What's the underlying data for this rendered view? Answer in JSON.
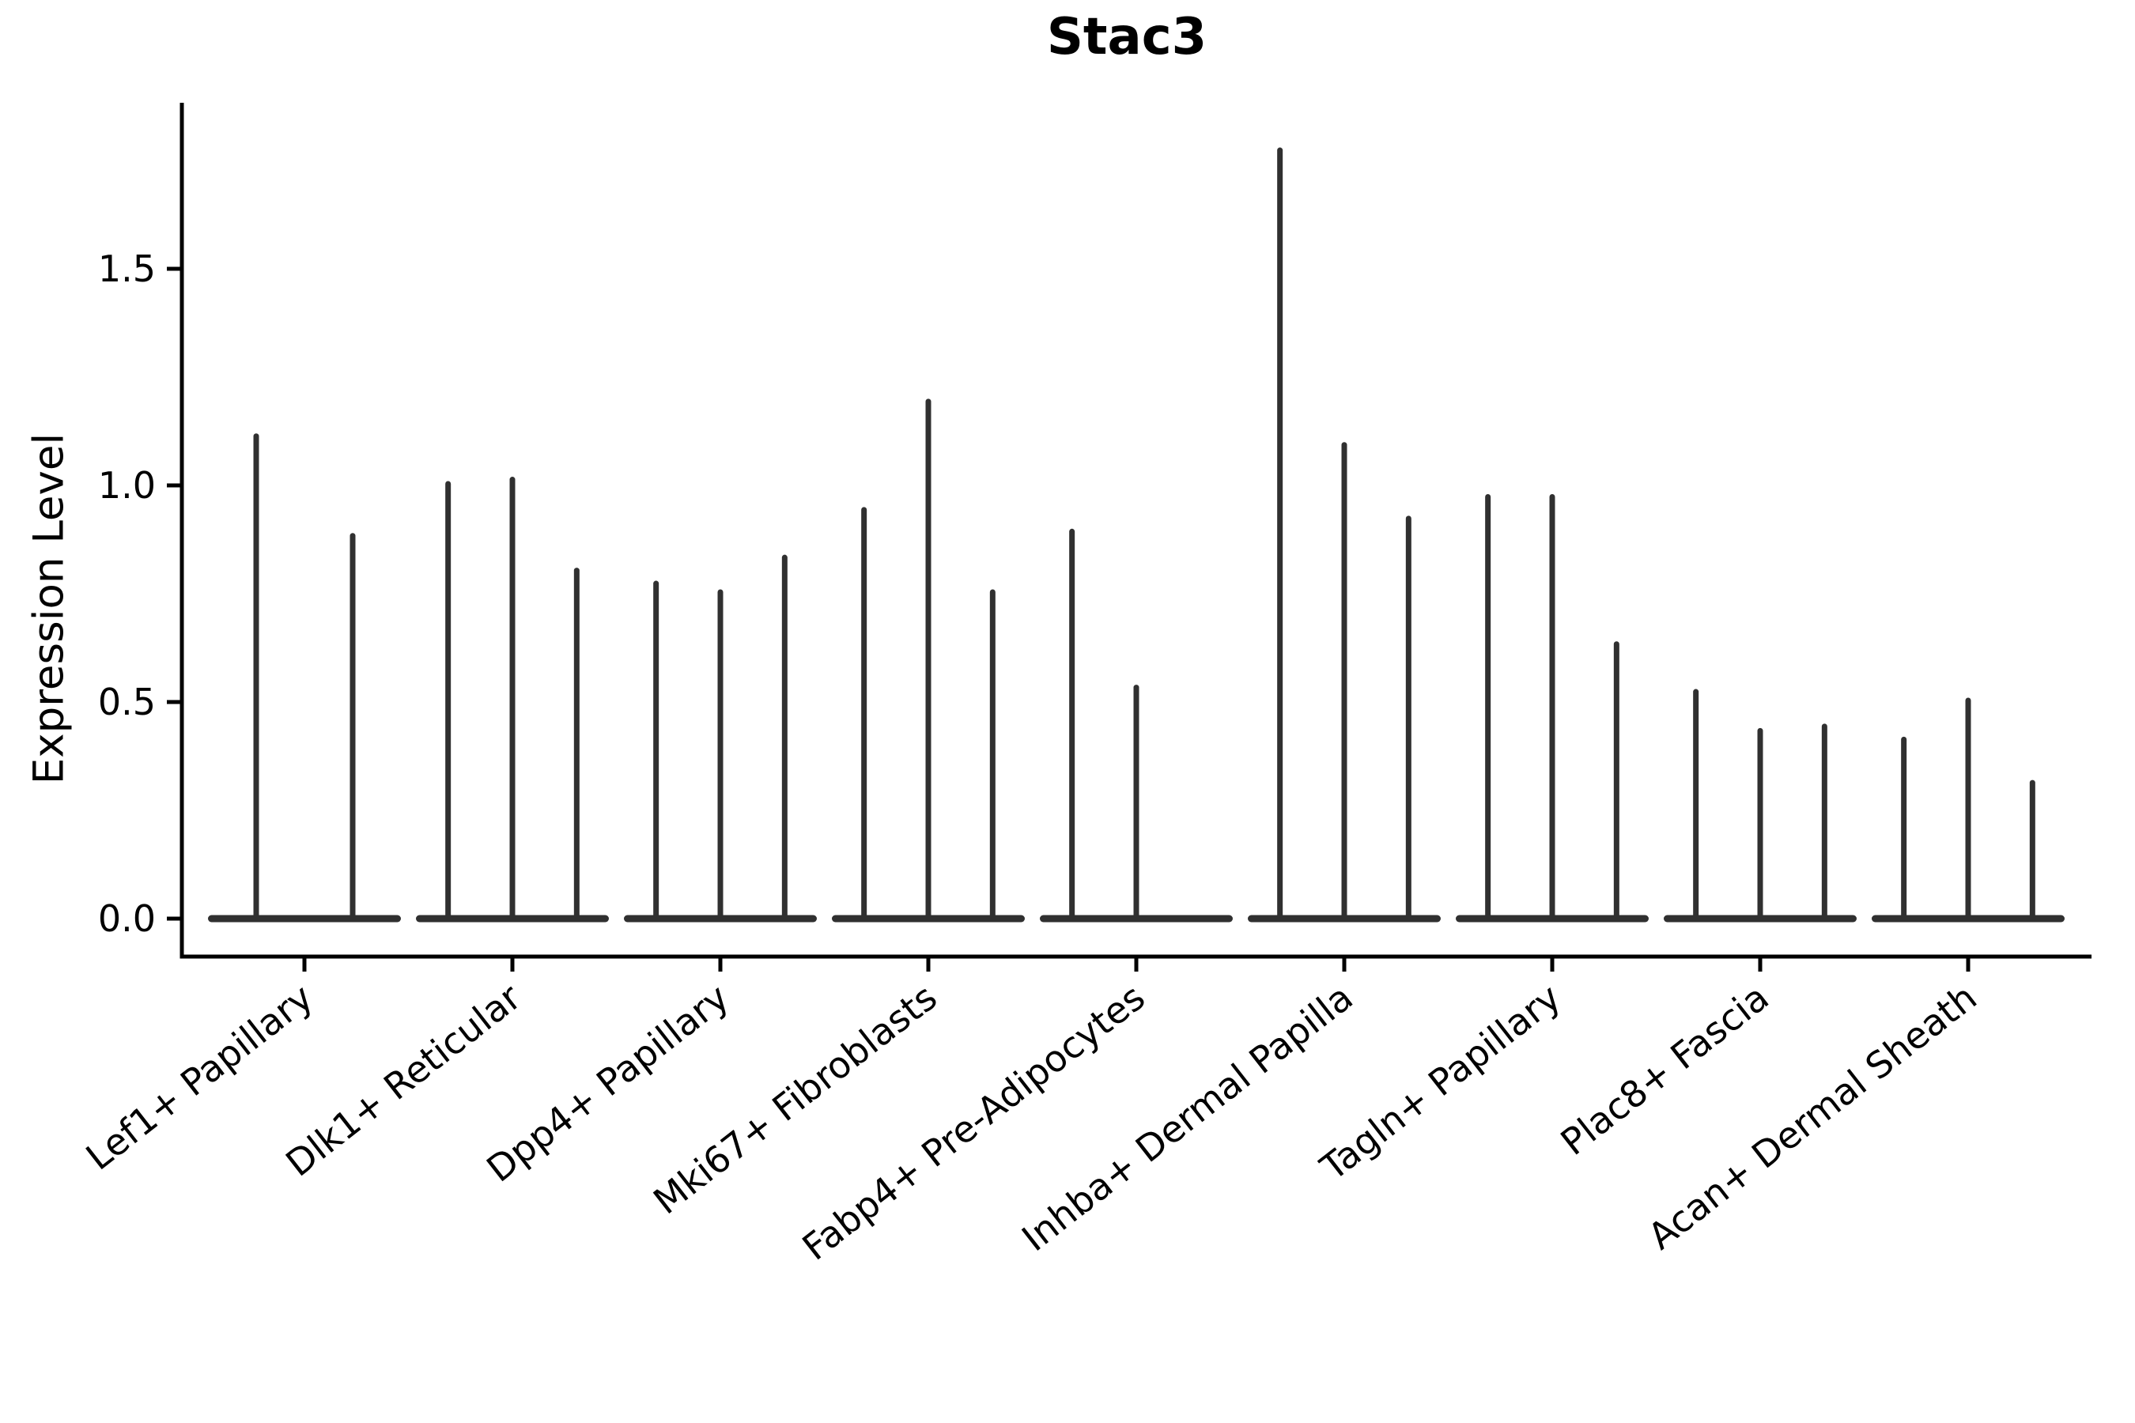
{
  "chart_data": {
    "type": "violin",
    "title": "Stac3",
    "xlabel": "",
    "ylabel": "Expression Level",
    "grid": false,
    "legend": null,
    "ylim": [
      -0.09,
      1.88
    ],
    "yticks": [
      0.0,
      0.5,
      1.0,
      1.5
    ],
    "categories": [
      "Lef1+ Papillary",
      "Dlk1+ Reticular",
      "Dpp4+ Papillary",
      "Mki67+ Fibroblasts",
      "Fabp4+ Pre-Adipocytes",
      "Inhba+ Dermal Papilla",
      "Tagln+ Papillary",
      "Plac8+ Fascia",
      "Acan+ Dermal Sheath"
    ],
    "groups": [
      {
        "label": "Lef1+ Papillary",
        "violin_baseline": 0.0,
        "violin_maxima": [
          1.12,
          0.89
        ]
      },
      {
        "label": "Dlk1+ Reticular",
        "violin_baseline": 0.0,
        "violin_maxima": [
          1.01,
          1.02,
          0.81
        ]
      },
      {
        "label": "Dpp4+ Papillary",
        "violin_baseline": 0.0,
        "violin_maxima": [
          0.78,
          0.76,
          0.84
        ]
      },
      {
        "label": "Mki67+ Fibroblasts",
        "violin_baseline": 0.0,
        "violin_maxima": [
          0.95,
          1.2,
          0.76
        ]
      },
      {
        "label": "Fabp4+ Pre-Adipocytes",
        "violin_baseline": 0.0,
        "violin_maxima": [
          0.9,
          0.54,
          0.0
        ]
      },
      {
        "label": "Inhba+ Dermal Papilla",
        "violin_baseline": 0.0,
        "violin_maxima": [
          1.78,
          1.1,
          0.93
        ]
      },
      {
        "label": "Tagln+ Papillary",
        "violin_baseline": 0.0,
        "violin_maxima": [
          0.98,
          0.98,
          0.64
        ]
      },
      {
        "label": "Plac8+ Fascia",
        "violin_baseline": 0.0,
        "violin_maxima": [
          0.53,
          0.44,
          0.45
        ]
      },
      {
        "label": "Acan+ Dermal Sheath",
        "violin_baseline": 0.0,
        "violin_maxima": [
          0.42,
          0.51,
          0.32
        ]
      }
    ],
    "colors": {
      "violin": "#303030",
      "axis": "#000000",
      "tick_label": "#000000",
      "background": "#ffffff"
    }
  }
}
